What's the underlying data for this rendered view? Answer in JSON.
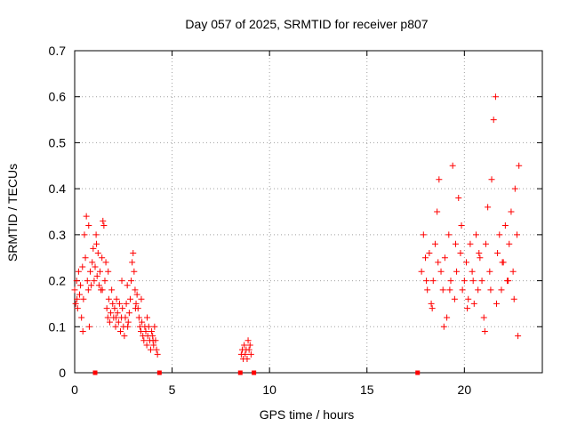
{
  "chart_data": {
    "type": "scatter",
    "title": "Day 057 of 2025, SRMTID for receiver p807",
    "xlabel": "GPS time / hours",
    "ylabel": "SRMTID / TECUs",
    "xlim": [
      0,
      24
    ],
    "ylim": [
      0,
      0.7
    ],
    "x_ticks": [
      0,
      5,
      10,
      15,
      20
    ],
    "x_tick_labels": [
      "0",
      "5",
      "10",
      "15",
      "20"
    ],
    "y_ticks": [
      0,
      0.1,
      0.2,
      0.3,
      0.4,
      0.5,
      0.6,
      0.7
    ],
    "y_tick_labels": [
      "0",
      "0.1",
      "0.2",
      "0.3",
      "0.4",
      "0.5",
      "0.6",
      "0.7"
    ],
    "grid": true,
    "marker": "plus",
    "color": "#ff0000",
    "series": [
      {
        "name": "SRMTID",
        "x": [
          0.0,
          0.05,
          0.1,
          0.15,
          0.2,
          0.25,
          0.3,
          0.35,
          0.4,
          0.45,
          0.5,
          0.55,
          0.6,
          0.65,
          0.7,
          0.75,
          0.8,
          0.85,
          0.9,
          0.95,
          1.0,
          1.05,
          1.1,
          1.15,
          1.2,
          1.25,
          1.3,
          1.35,
          1.4,
          1.45,
          1.5,
          1.55,
          1.6,
          1.65,
          1.7,
          1.75,
          1.8,
          1.85,
          1.9,
          1.95,
          2.0,
          2.05,
          2.1,
          2.15,
          2.2,
          2.25,
          2.3,
          2.35,
          2.4,
          2.45,
          2.5,
          2.55,
          2.6,
          2.65,
          2.7,
          2.75,
          2.8,
          2.85,
          2.9,
          2.95,
          3.0,
          3.05,
          3.1,
          3.15,
          3.2,
          3.25,
          3.3,
          3.35,
          3.4,
          3.45,
          3.5,
          3.55,
          3.6,
          3.65,
          3.7,
          3.75,
          3.8,
          3.85,
          3.9,
          3.95,
          4.0,
          4.05,
          4.1,
          4.15,
          4.2,
          4.25,
          8.55,
          8.6,
          8.65,
          8.7,
          8.75,
          8.8,
          8.85,
          8.9,
          8.95,
          9.0,
          9.05,
          17.8,
          17.9,
          18.0,
          18.1,
          18.2,
          18.3,
          18.4,
          18.5,
          18.6,
          18.7,
          18.8,
          18.9,
          19.0,
          19.1,
          19.2,
          19.3,
          19.4,
          19.5,
          19.6,
          19.7,
          19.8,
          19.9,
          20.0,
          20.1,
          20.2,
          20.3,
          20.4,
          20.5,
          20.6,
          20.7,
          20.8,
          20.9,
          21.0,
          21.1,
          21.2,
          21.3,
          21.4,
          21.5,
          21.6,
          21.7,
          21.8,
          21.9,
          22.0,
          22.1,
          22.2,
          22.3,
          22.4,
          22.5,
          22.6,
          22.7,
          22.8,
          18.05,
          18.35,
          18.65,
          18.95,
          19.25,
          19.55,
          19.85,
          20.15,
          20.45,
          20.75,
          21.05,
          21.35,
          21.65,
          21.95,
          22.25,
          22.55,
          22.75,
          0.12,
          0.42,
          0.72,
          1.12,
          1.42,
          1.72,
          2.12,
          2.42,
          2.72,
          3.12,
          3.42,
          3.72,
          4.02
        ],
        "y": [
          0.18,
          0.15,
          0.2,
          0.14,
          0.22,
          0.17,
          0.19,
          0.12,
          0.23,
          0.16,
          0.3,
          0.25,
          0.34,
          0.2,
          0.18,
          0.1,
          0.22,
          0.19,
          0.24,
          0.27,
          0.2,
          0.23,
          0.3,
          0.21,
          0.26,
          0.19,
          0.22,
          0.18,
          0.25,
          0.33,
          0.32,
          0.2,
          0.24,
          0.14,
          0.12,
          0.16,
          0.11,
          0.13,
          0.18,
          0.15,
          0.12,
          0.14,
          0.1,
          0.16,
          0.13,
          0.11,
          0.15,
          0.09,
          0.12,
          0.14,
          0.1,
          0.08,
          0.12,
          0.15,
          0.19,
          0.11,
          0.13,
          0.16,
          0.2,
          0.24,
          0.26,
          0.22,
          0.18,
          0.15,
          0.17,
          0.14,
          0.12,
          0.1,
          0.09,
          0.11,
          0.08,
          0.07,
          0.1,
          0.09,
          0.06,
          0.08,
          0.1,
          0.07,
          0.05,
          0.09,
          0.08,
          0.06,
          0.1,
          0.07,
          0.05,
          0.04,
          0.04,
          0.05,
          0.03,
          0.06,
          0.04,
          0.05,
          0.03,
          0.07,
          0.05,
          0.06,
          0.04,
          0.22,
          0.3,
          0.25,
          0.18,
          0.26,
          0.15,
          0.2,
          0.28,
          0.35,
          0.42,
          0.22,
          0.18,
          0.25,
          0.12,
          0.3,
          0.2,
          0.45,
          0.16,
          0.22,
          0.38,
          0.26,
          0.18,
          0.2,
          0.24,
          0.16,
          0.28,
          0.22,
          0.15,
          0.3,
          0.18,
          0.25,
          0.2,
          0.12,
          0.28,
          0.36,
          0.22,
          0.42,
          0.55,
          0.6,
          0.26,
          0.3,
          0.18,
          0.24,
          0.32,
          0.2,
          0.28,
          0.35,
          0.22,
          0.4,
          0.3,
          0.45,
          0.2,
          0.14,
          0.24,
          0.1,
          0.18,
          0.28,
          0.32,
          0.14,
          0.2,
          0.26,
          0.09,
          0.18,
          0.15,
          0.24,
          0.2,
          0.16,
          0.08,
          0.16,
          0.09,
          0.32,
          0.28,
          0.18,
          0.22,
          0.12,
          0.2,
          0.1,
          0.14,
          0.16,
          0.12,
          0.07
        ]
      }
    ],
    "baseline_markers_x": [
      1.05,
      4.35,
      8.5,
      9.2,
      17.6
    ]
  }
}
